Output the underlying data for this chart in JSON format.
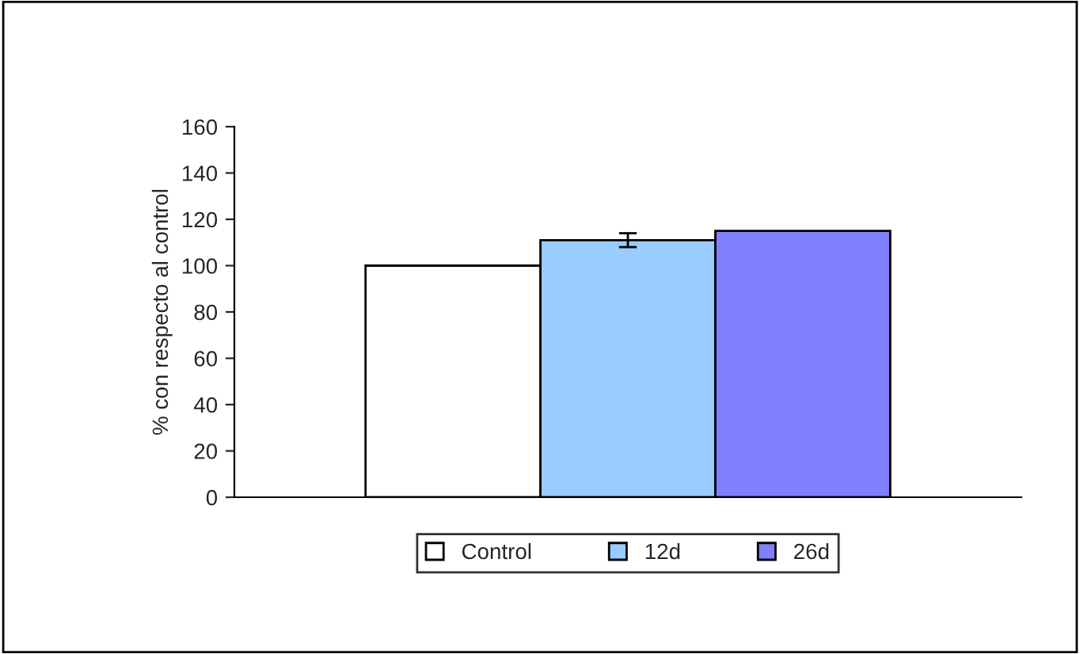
{
  "chart_data": {
    "type": "bar",
    "ylabel": "% con respecto al control",
    "categories": [
      null
    ],
    "series": [
      {
        "name": "Control",
        "color": "#ffffff",
        "values": [
          100
        ]
      },
      {
        "name": "12d",
        "color": "#99ccff",
        "values": [
          111
        ],
        "errors": [
          3
        ]
      },
      {
        "name": "26d",
        "color": "#8080ff",
        "values": [
          115
        ]
      }
    ],
    "ylim": [
      0,
      160
    ],
    "yticks": [
      0,
      20,
      40,
      60,
      80,
      100,
      120,
      140,
      160
    ],
    "grid": false,
    "legend": "bottom"
  }
}
